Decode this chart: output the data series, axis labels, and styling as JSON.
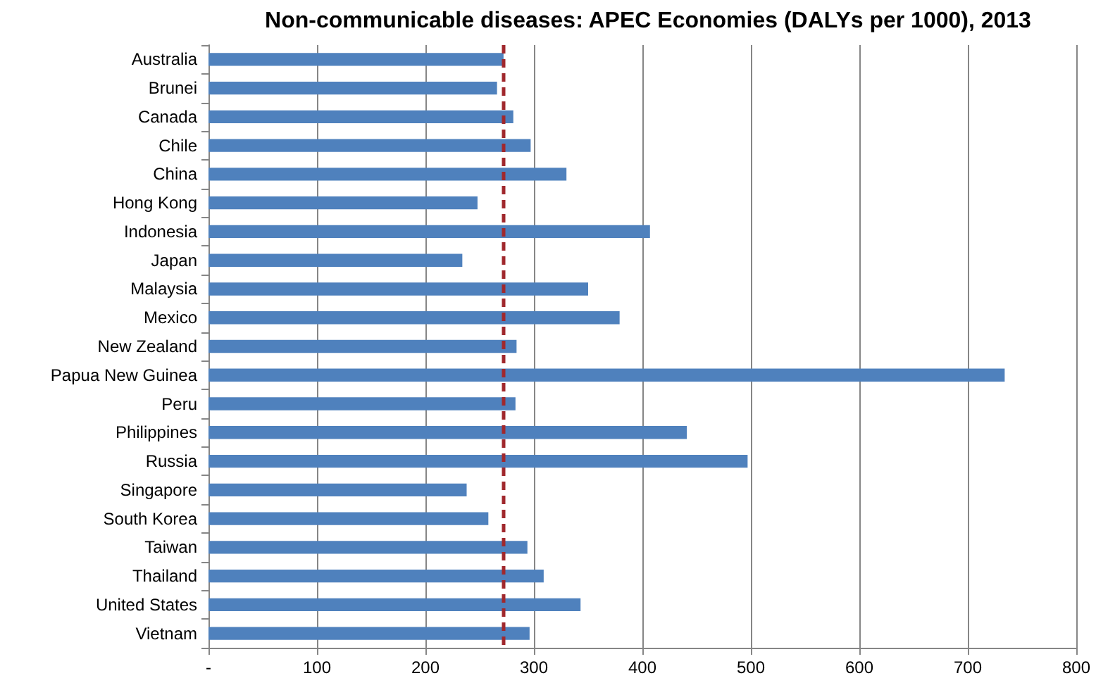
{
  "chart_data": {
    "type": "bar",
    "orientation": "horizontal",
    "title": "Non-communicable diseases: APEC Economies (DALYs per 1000), 2013",
    "categories": [
      "Australia",
      "Brunei",
      "Canada",
      "Chile",
      "China",
      "Hong Kong",
      "Indonesia",
      "Japan",
      "Malaysia",
      "Mexico",
      "New Zealand",
      "Papua New Guinea",
      "Peru",
      "Philippines",
      "Russia",
      "Singapore",
      "South Korea",
      "Taiwan",
      "Thailand",
      "United States",
      "Vietnam"
    ],
    "values": [
      272,
      266,
      281,
      297,
      330,
      248,
      407,
      234,
      350,
      379,
      284,
      734,
      283,
      441,
      497,
      238,
      258,
      294,
      309,
      343,
      296
    ],
    "color": "#4f81bd",
    "xlim": [
      0,
      800
    ],
    "xticks": [
      {
        "value": 0,
        "label": "-"
      },
      100,
      200,
      300,
      400,
      500,
      600,
      700,
      800
    ],
    "grid": "x",
    "ref_lines": [
      {
        "axis": "x",
        "value": 272,
        "color": "#a0282d",
        "line_style": "dashed"
      }
    ]
  }
}
